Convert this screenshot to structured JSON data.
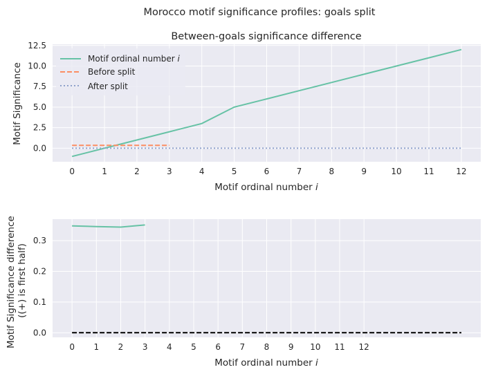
{
  "figure": {
    "suptitle": "Morocco motif significance profiles: goals split"
  },
  "colors": {
    "axes_bg": "#eaeaf2",
    "grid": "#ffffff",
    "motif_line": "#66c2a5",
    "before_line": "#fc8d62",
    "after_line": "#8da0cb",
    "zero_line": "#000000"
  },
  "chart_data": [
    {
      "type": "line",
      "title": "Between-goals significance difference",
      "xlabel": "Motif ordinal number i",
      "xlabel_text": "Motif ordinal number ",
      "xlabel_var": "i",
      "ylabel": "Motif Significance",
      "xlim": [
        -0.6,
        12.6
      ],
      "ylim": [
        -1.65,
        12.65
      ],
      "x_ticks": [
        "0",
        "1",
        "2",
        "3",
        "4",
        "5",
        "6",
        "7",
        "8",
        "9",
        "10",
        "11",
        "12"
      ],
      "y_ticks": [
        "0.0",
        "2.5",
        "5.0",
        "7.5",
        "10.0",
        "12.5"
      ],
      "y_tick_values": [
        0,
        2.5,
        5.0,
        7.5,
        10.0,
        12.5
      ],
      "grid": true,
      "legend_position": "top-left",
      "series": [
        {
          "name": "Motif ordinal number i",
          "legend_text": "Motif ordinal number ",
          "legend_var": "i",
          "style": "solid",
          "color": "#66c2a5",
          "x": [
            0,
            1,
            2,
            3,
            4,
            5,
            6,
            7,
            8,
            9,
            10,
            11,
            12
          ],
          "y": [
            -1,
            0,
            1,
            2,
            3,
            5,
            6,
            7,
            8,
            9,
            10,
            11,
            12
          ]
        },
        {
          "name": "Before split",
          "legend_text": "Before split",
          "style": "dashed",
          "color": "#fc8d62",
          "x": [
            0,
            1,
            2,
            3
          ],
          "y": [
            0.35,
            0.35,
            0.35,
            0.35
          ]
        },
        {
          "name": "After split",
          "legend_text": "After split",
          "style": "dotted",
          "color": "#8da0cb",
          "x": [
            0,
            1,
            2,
            3,
            4,
            5,
            6,
            7,
            8,
            9,
            10,
            11,
            12
          ],
          "y": [
            0,
            0,
            0,
            0,
            0,
            0,
            0,
            0,
            0,
            0,
            0,
            0,
            0
          ]
        }
      ]
    },
    {
      "type": "line",
      "title": "",
      "xlabel": "Motif ordinal number i",
      "xlabel_text": "Motif ordinal number ",
      "xlabel_var": "i",
      "ylabel_lines": [
        "Motif Significance difference",
        "((+) is first half)"
      ],
      "xlim": [
        -0.8,
        16.8
      ],
      "ylim": [
        -0.015,
        0.37
      ],
      "x_ticks": [
        "0",
        "1",
        "2",
        "3",
        "4",
        "5",
        "6",
        "7",
        "8",
        "9",
        "10",
        "11",
        "12"
      ],
      "y_ticks": [
        "0.0",
        "0.1",
        "0.2",
        "0.3"
      ],
      "y_tick_values": [
        0,
        0.1,
        0.2,
        0.3
      ],
      "grid": true,
      "series": [
        {
          "style": "solid",
          "color": "#66c2a5",
          "x": [
            0,
            1,
            2,
            3
          ],
          "y": [
            0.348,
            0.346,
            0.344,
            0.351
          ]
        },
        {
          "style": "dashed",
          "color": "#000000",
          "x": [
            0,
            16
          ],
          "y": [
            0,
            0
          ]
        }
      ]
    }
  ]
}
